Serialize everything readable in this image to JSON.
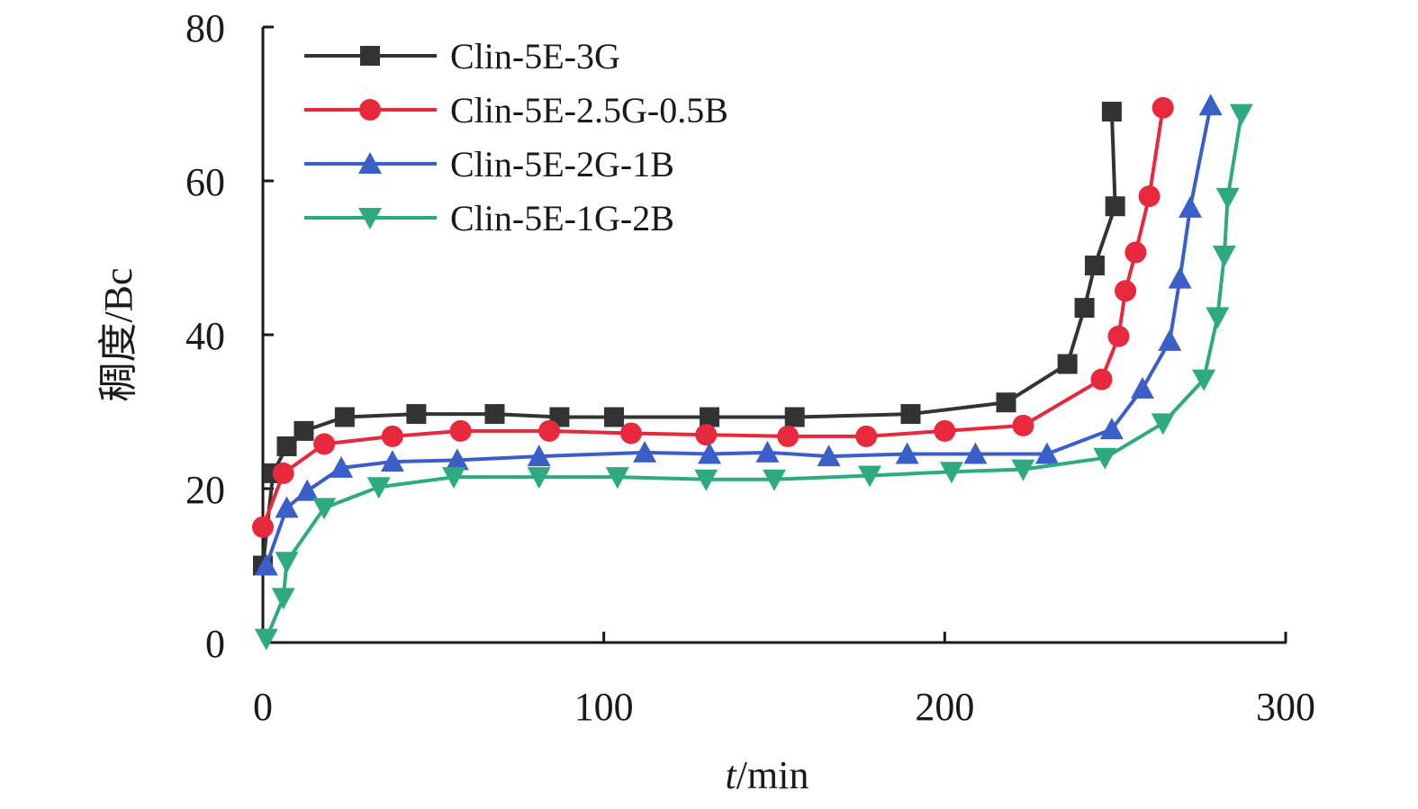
{
  "chart_data": {
    "type": "line",
    "xlabel_italic": "t",
    "xlabel_rest": "/min",
    "ylabel": "稠度/Bc",
    "xlim": [
      0,
      300
    ],
    "ylim": [
      0,
      80
    ],
    "x_ticks": [
      0,
      100,
      200,
      300
    ],
    "y_ticks": [
      0,
      20,
      40,
      60,
      80
    ],
    "legend_position": "top-left",
    "grid": false,
    "series": [
      {
        "name": "Clin-5E-3G",
        "color": "#333333",
        "marker": "square",
        "points": [
          [
            0,
            10
          ],
          [
            3,
            22
          ],
          [
            7,
            25.5
          ],
          [
            12,
            27.5
          ],
          [
            24,
            29.3
          ],
          [
            45,
            29.7
          ],
          [
            68,
            29.7
          ],
          [
            87,
            29.3
          ],
          [
            103,
            29.3
          ],
          [
            131,
            29.3
          ],
          [
            156,
            29.3
          ],
          [
            190,
            29.7
          ],
          [
            218,
            31.2
          ],
          [
            236,
            36.2
          ],
          [
            241,
            43.5
          ],
          [
            244,
            49.0
          ],
          [
            250,
            56.7
          ],
          [
            249,
            69.0
          ]
        ]
      },
      {
        "name": "Clin-5E-2.5G-0.5B",
        "color": "#e8283c",
        "marker": "circle",
        "points": [
          [
            0,
            15
          ],
          [
            6,
            22.0
          ],
          [
            18,
            25.8
          ],
          [
            38,
            26.8
          ],
          [
            58,
            27.5
          ],
          [
            84,
            27.5
          ],
          [
            108,
            27.2
          ],
          [
            130,
            27.0
          ],
          [
            154,
            26.8
          ],
          [
            177,
            26.8
          ],
          [
            200,
            27.5
          ],
          [
            223,
            28.2
          ],
          [
            246,
            34.2
          ],
          [
            251,
            39.8
          ],
          [
            253,
            45.7
          ],
          [
            256,
            50.7
          ],
          [
            260,
            58.0
          ],
          [
            264,
            69.5
          ]
        ]
      },
      {
        "name": "Clin-5E-2G-1B",
        "color": "#3a5fc8",
        "marker": "triangle-up",
        "points": [
          [
            1,
            10
          ],
          [
            7,
            17.5
          ],
          [
            13,
            19.7
          ],
          [
            23,
            22.7
          ],
          [
            38,
            23.5
          ],
          [
            57,
            23.7
          ],
          [
            81,
            24.2
          ],
          [
            112,
            24.7
          ],
          [
            131,
            24.5
          ],
          [
            148,
            24.7
          ],
          [
            166,
            24.2
          ],
          [
            189,
            24.5
          ],
          [
            209,
            24.5
          ],
          [
            230,
            24.5
          ],
          [
            249,
            27.7
          ],
          [
            258,
            33.0
          ],
          [
            266,
            39.2
          ],
          [
            269,
            47.3
          ],
          [
            272,
            56.5
          ],
          [
            278,
            69.8
          ]
        ]
      },
      {
        "name": "Clin-5E-1G-2B",
        "color": "#2eaa80",
        "marker": "triangle-down",
        "points": [
          [
            1,
            0.5
          ],
          [
            6,
            5.8
          ],
          [
            7,
            10.5
          ],
          [
            18,
            17.5
          ],
          [
            34,
            20.2
          ],
          [
            56,
            21.5
          ],
          [
            81,
            21.5
          ],
          [
            104,
            21.5
          ],
          [
            130,
            21.2
          ],
          [
            150,
            21.2
          ],
          [
            178,
            21.7
          ],
          [
            202,
            22.2
          ],
          [
            223,
            22.5
          ],
          [
            247,
            24.0
          ],
          [
            264,
            28.5
          ],
          [
            276,
            34.2
          ],
          [
            280,
            42.3
          ],
          [
            282,
            50.3
          ],
          [
            283,
            57.8
          ],
          [
            287,
            68.7
          ]
        ]
      }
    ]
  }
}
